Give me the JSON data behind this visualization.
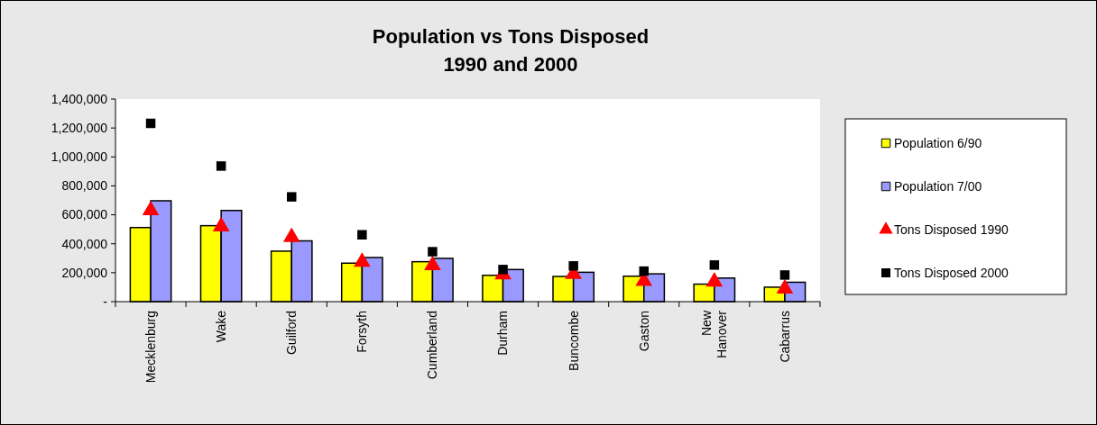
{
  "chart_data": {
    "type": "bar",
    "title": "Population vs Tons Disposed\n1990 and 2000",
    "categories": [
      "Mecklenburg",
      "Wake",
      "Guilford",
      "Forsyth",
      "Cumberland",
      "Durham",
      "Buncombe",
      "Gaston",
      "New Hanover",
      "Cabarrus"
    ],
    "series": [
      {
        "name": "Population 6/90",
        "color": "#ffff00",
        "values": [
          512000,
          525000,
          349000,
          266000,
          276000,
          182000,
          174000,
          176000,
          121000,
          100000
        ]
      },
      {
        "name": "Population 7/00",
        "color": "#9999ff",
        "values": [
          697000,
          630000,
          420000,
          305000,
          299000,
          222000,
          203000,
          192000,
          163000,
          134000
        ]
      },
      {
        "name": "Tons Disposed 1990",
        "type": "scatter",
        "marker": "triangle",
        "color": "#ff0000",
        "x": [
          "Mecklenburg",
          "Wake",
          "Guilford",
          "Forsyth",
          "Cumberland",
          "Durham",
          "Buncombe",
          "Gaston",
          "New Hanover",
          "Cabarrus"
        ],
        "values": [
          630000,
          519000,
          446000,
          274000,
          251000,
          188000,
          190000,
          142000,
          138000,
          90000
        ]
      },
      {
        "name": "Tons Disposed 2000",
        "type": "scatter",
        "marker": "square",
        "color": "#000000",
        "x": [
          "Mecklenburg",
          "Wake",
          "Guilford",
          "Forsyth",
          "Cumberland",
          "Durham",
          "Buncombe",
          "Gaston",
          "New Hanover",
          "Cabarrus"
        ],
        "values": [
          1232000,
          937000,
          724000,
          462000,
          345000,
          222000,
          247000,
          211000,
          253000,
          184000
        ]
      }
    ],
    "ylim": [
      0,
      1400000
    ],
    "yticks": [
      {
        "value": 0,
        "label": "-"
      },
      {
        "value": 200000,
        "label": "200,000"
      },
      {
        "value": 400000,
        "label": "400,000"
      },
      {
        "value": 600000,
        "label": "600,000"
      },
      {
        "value": 800000,
        "label": "800,000"
      },
      {
        "value": 1000000,
        "label": "1,000,000"
      },
      {
        "value": 1200000,
        "label": "1,200,000"
      },
      {
        "value": 1400000,
        "label": "1,400,000"
      }
    ],
    "grid": false,
    "legend": "right"
  }
}
